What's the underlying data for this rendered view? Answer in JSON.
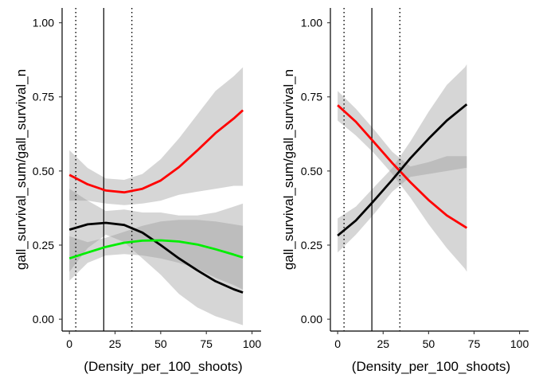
{
  "chart_data": [
    {
      "type": "line",
      "panel": "left",
      "xlabel": "(Density_per_100_shoots)",
      "ylabel": "gall_survival_sum/gall_survival_n",
      "xlim": [
        -4,
        105
      ],
      "ylim": [
        -0.04,
        1.05
      ],
      "xticks": [
        0,
        25,
        50,
        75,
        100
      ],
      "xtick_labels": [
        "0",
        "25",
        "50",
        "75",
        "100"
      ],
      "yticks": [
        0.0,
        0.25,
        0.5,
        0.75,
        1.0
      ],
      "ytick_labels": [
        "0.00",
        "0.25",
        "0.50",
        "0.75",
        "1.00"
      ],
      "grid": false,
      "legend": "none",
      "vlines": [
        {
          "x": 3.5,
          "style": "dotted"
        },
        {
          "x": 18.8,
          "style": "solid"
        },
        {
          "x": 34.2,
          "style": "dotted"
        }
      ],
      "series": [
        {
          "color": "#ff0000",
          "x": [
            0,
            10,
            20,
            30,
            40,
            50,
            60,
            70,
            80,
            90,
            95
          ],
          "y": [
            0.487,
            0.455,
            0.434,
            0.428,
            0.44,
            0.468,
            0.513,
            0.569,
            0.628,
            0.677,
            0.705
          ],
          "ci_lower": [
            0.4,
            0.4,
            0.39,
            0.385,
            0.39,
            0.4,
            0.42,
            0.43,
            0.44,
            0.45,
            0.45
          ],
          "ci_upper": [
            0.57,
            0.51,
            0.475,
            0.47,
            0.49,
            0.54,
            0.61,
            0.69,
            0.77,
            0.82,
            0.85
          ]
        },
        {
          "color": "#000000",
          "x": [
            0,
            10,
            20,
            30,
            40,
            50,
            60,
            70,
            80,
            90,
            95
          ],
          "y": [
            0.302,
            0.32,
            0.325,
            0.318,
            0.292,
            0.25,
            0.205,
            0.165,
            0.128,
            0.101,
            0.09
          ],
          "ci_lower": [
            0.16,
            0.24,
            0.285,
            0.26,
            0.205,
            0.15,
            0.085,
            0.04,
            0.01,
            -0.01,
            -0.02
          ],
          "ci_upper": [
            0.44,
            0.4,
            0.365,
            0.37,
            0.36,
            0.36,
            0.35,
            0.35,
            0.36,
            0.38,
            0.39
          ]
        },
        {
          "color": "#00ee00",
          "x": [
            0,
            10,
            20,
            30,
            40,
            50,
            60,
            70,
            80,
            90,
            95
          ],
          "y": [
            0.205,
            0.225,
            0.244,
            0.258,
            0.265,
            0.266,
            0.262,
            0.252,
            0.236,
            0.218,
            0.208
          ],
          "ci_lower": [
            0.13,
            0.19,
            0.215,
            0.22,
            0.215,
            0.205,
            0.19,
            0.17,
            0.14,
            0.115,
            0.1
          ],
          "ci_upper": [
            0.28,
            0.26,
            0.275,
            0.295,
            0.315,
            0.33,
            0.335,
            0.335,
            0.33,
            0.32,
            0.315
          ]
        }
      ]
    },
    {
      "type": "line",
      "panel": "right",
      "xlabel": "(Density_per_100_shoots)",
      "ylabel": "gall_survival_sum/gall_survival_n",
      "xlim": [
        -4,
        105
      ],
      "ylim": [
        -0.04,
        1.05
      ],
      "xticks": [
        0,
        25,
        50,
        75,
        100
      ],
      "xtick_labels": [
        "0",
        "25",
        "50",
        "75",
        "100"
      ],
      "yticks": [
        0.0,
        0.25,
        0.5,
        0.75,
        1.0
      ],
      "ytick_labels": [
        "0.00",
        "0.25",
        "0.50",
        "0.75",
        "1.00"
      ],
      "grid": false,
      "legend": "none",
      "vlines": [
        {
          "x": 3.5,
          "style": "dotted"
        },
        {
          "x": 18.8,
          "style": "solid"
        },
        {
          "x": 34.2,
          "style": "dotted"
        }
      ],
      "series": [
        {
          "color": "#ff0000",
          "x": [
            0,
            10,
            20,
            30,
            40,
            50,
            60,
            70,
            71
          ],
          "y": [
            0.722,
            0.666,
            0.597,
            0.527,
            0.462,
            0.402,
            0.35,
            0.312,
            0.308
          ],
          "ci_lower": [
            0.67,
            0.62,
            0.56,
            0.49,
            0.41,
            0.32,
            0.24,
            0.17,
            0.16
          ],
          "ci_upper": [
            0.77,
            0.71,
            0.64,
            0.565,
            0.515,
            0.53,
            0.55,
            0.55,
            0.55
          ]
        },
        {
          "color": "#000000",
          "x": [
            0,
            10,
            20,
            30,
            40,
            50,
            60,
            70,
            71
          ],
          "y": [
            0.282,
            0.333,
            0.4,
            0.47,
            0.543,
            0.609,
            0.67,
            0.72,
            0.725
          ],
          "ci_lower": [
            0.225,
            0.285,
            0.355,
            0.43,
            0.48,
            0.49,
            0.5,
            0.51,
            0.51
          ],
          "ci_upper": [
            0.34,
            0.38,
            0.445,
            0.51,
            0.6,
            0.7,
            0.79,
            0.85,
            0.86
          ]
        }
      ]
    }
  ]
}
